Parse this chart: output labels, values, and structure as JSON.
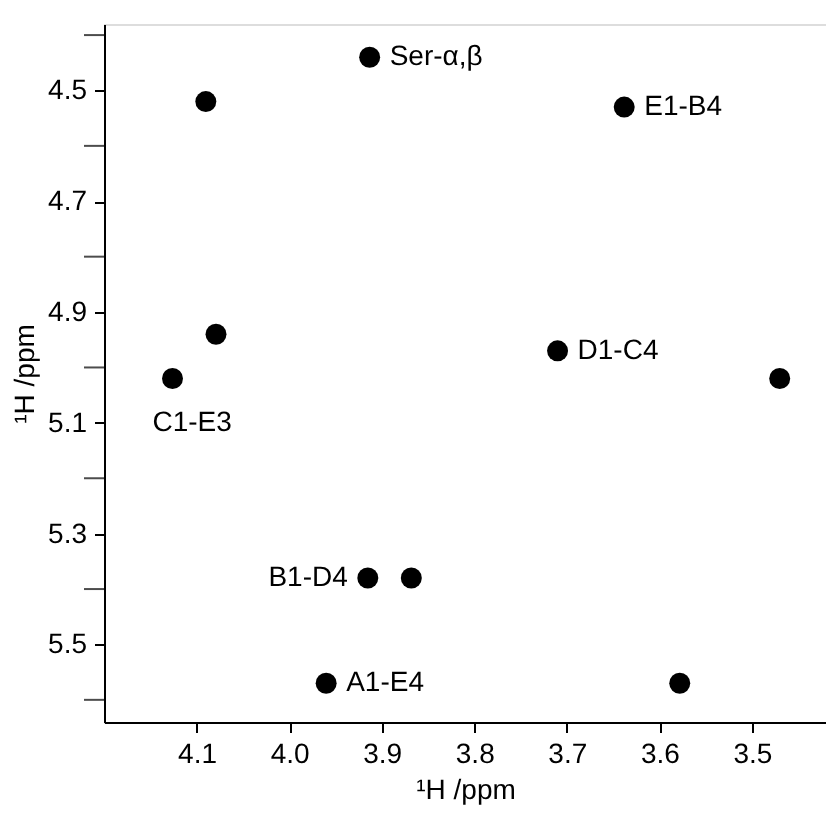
{
  "chart_data": {
    "type": "scatter",
    "xlabel": "¹H /ppm",
    "ylabel": "¹H /ppm",
    "x": [
      4.09,
      3.913,
      3.638,
      4.079,
      4.126,
      3.71,
      3.47,
      3.915,
      3.868,
      3.96,
      3.578
    ],
    "series": [
      {
        "color": "#000000",
        "values": [
          4.52,
          4.44,
          4.53,
          4.94,
          5.02,
          4.97,
          5.02,
          5.38,
          5.38,
          5.57,
          5.57
        ]
      }
    ],
    "marker": "circle",
    "xlim": [
      4.2,
      3.42
    ],
    "ylim": [
      5.64,
      4.38
    ],
    "xticks": [
      4.1,
      {
        "value": 4.0,
        "label": "4.0"
      },
      3.9,
      3.8,
      3.7,
      3.6,
      3.5
    ],
    "yticks": [
      {
        "value": 4.4,
        "label": null
      },
      4.5,
      {
        "value": 4.6,
        "label": null
      },
      4.7,
      {
        "value": 4.8,
        "label": null
      },
      4.9,
      {
        "value": 5.0,
        "label": null
      },
      5.1,
      {
        "value": 5.2,
        "label": null
      },
      5.3,
      {
        "value": 5.4,
        "label": null
      },
      5.5,
      {
        "value": 5.6,
        "label": null
      }
    ],
    "annotations": [
      {
        "text": "Ser-α,β",
        "x": 3.913,
        "y": 4.44
      },
      {
        "text": "E1-B4",
        "x": 3.638,
        "y": 4.53
      },
      {
        "text": "D1-C4",
        "x": 3.71,
        "y": 4.97
      },
      {
        "text": "C1-E3",
        "x": 4.126,
        "y": 5.02
      },
      {
        "text": "B1-D4",
        "x": 3.915,
        "y": 5.38
      },
      {
        "text": "A1-E4",
        "x": 3.96,
        "y": 5.57
      }
    ],
    "grid": false
  }
}
